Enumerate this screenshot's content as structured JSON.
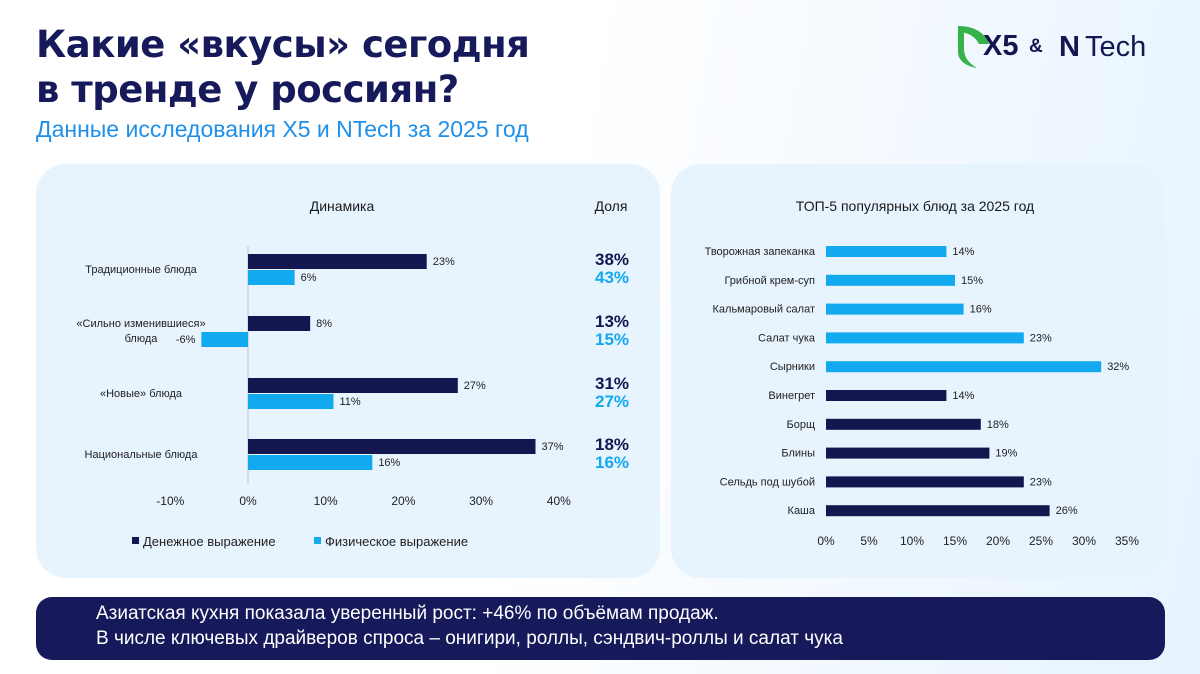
{
  "header": {
    "title_line1": "Какие «вкусы» сегодня",
    "title_line2": "в тренде у россиян?",
    "subtitle": "Данные исследования X5 и NTech за 2025 год"
  },
  "logo": {
    "x5": "X5",
    "amp": "&",
    "n": "N",
    "tech": "Tech",
    "icon": "x5-leaf-icon",
    "leaf_color": "#35b34a"
  },
  "colors": {
    "dark": "#14174f",
    "light": "#12a9ee",
    "accent": "#1e90ea",
    "panel": "#e7f3fd"
  },
  "chart_data": [
    {
      "type": "bar",
      "orientation": "horizontal",
      "title": "Динамика",
      "share_header": "Доля",
      "categories": [
        "Традиционные блюда",
        "«Сильно изменившиеся» блюда",
        "«Новые» блюда",
        "Национальные блюда"
      ],
      "category_lines": [
        [
          "Традиционные блюда"
        ],
        [
          "«Сильно изменившиеся»",
          "блюда"
        ],
        [
          "«Новые» блюда"
        ],
        [
          "Национальные блюда"
        ]
      ],
      "series": [
        {
          "name": "Денежное выражение",
          "color": "#14174f",
          "values": [
            23,
            8,
            27,
            37
          ],
          "labels": [
            "23%",
            "8%",
            "27%",
            "37%"
          ]
        },
        {
          "name": "Физическое выражение",
          "color": "#12a9ee",
          "values": [
            6,
            -6,
            11,
            16
          ],
          "labels": [
            "6%",
            "-6%",
            "11%",
            "16%"
          ]
        }
      ],
      "share": {
        "money": [
          "38%",
          "13%",
          "31%",
          "18%"
        ],
        "physical": [
          "43%",
          "15%",
          "27%",
          "16%"
        ]
      },
      "xlim": [
        -10,
        40
      ],
      "xticks": [
        -10,
        0,
        10,
        20,
        30,
        40
      ],
      "xtick_labels": [
        "-10%",
        "0%",
        "10%",
        "20%",
        "30%",
        "40%"
      ],
      "legend_position": "bottom",
      "grid": false
    },
    {
      "type": "bar",
      "orientation": "horizontal",
      "title": "ТОП-5 популярных блюд за 2025 год",
      "categories": [
        "Творожная запеканка",
        "Грибной крем-суп",
        "Кальмаровый салат",
        "Салат чука",
        "Сырники",
        "Винегрет",
        "Борщ",
        "Блины",
        "Сельдь под шубой",
        "Каша"
      ],
      "values": [
        14,
        15,
        16,
        23,
        32,
        14,
        18,
        19,
        23,
        26
      ],
      "labels": [
        "14%",
        "15%",
        "16%",
        "23%",
        "32%",
        "14%",
        "18%",
        "19%",
        "23%",
        "26%"
      ],
      "colors": [
        "#12a9ee",
        "#12a9ee",
        "#12a9ee",
        "#12a9ee",
        "#12a9ee",
        "#14174f",
        "#14174f",
        "#14174f",
        "#14174f",
        "#14174f"
      ],
      "xlim": [
        0,
        35
      ],
      "xticks": [
        0,
        5,
        10,
        15,
        20,
        25,
        30,
        35
      ],
      "xtick_labels": [
        "0%",
        "5%",
        "10%",
        "15%",
        "20%",
        "25%",
        "30%",
        "35%"
      ],
      "grid": false
    }
  ],
  "banner": {
    "line1": "Азиатская кухня показала уверенный рост: +46% по объёмам продаж.",
    "line2": "В числе ключевых драйверов спроса – онигири, роллы, сэндвич-роллы и салат чука"
  }
}
